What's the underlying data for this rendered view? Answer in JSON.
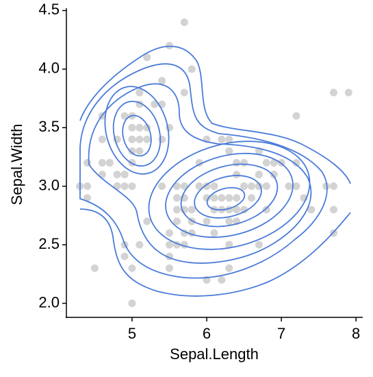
{
  "chart_data": {
    "type": "scatter",
    "color": "#d3d3d3",
    "x_label": "Sepal.Length",
    "y_label": "Sepal.Width",
    "xlim": [
      4.12,
      8.09
    ],
    "ylim": [
      1.88,
      4.52
    ],
    "xticks": [
      5,
      6,
      7,
      8
    ],
    "yticks": [
      {
        "value": 2,
        "label": "2.0"
      },
      2.5,
      {
        "value": 3,
        "label": "3.0"
      },
      3.5,
      {
        "value": 4,
        "label": "4.0"
      },
      4.5
    ],
    "x": [
      5.1,
      4.9,
      4.7,
      4.6,
      5.0,
      5.4,
      4.6,
      5.0,
      4.4,
      4.9,
      5.4,
      4.8,
      4.8,
      4.3,
      5.8,
      5.7,
      5.4,
      5.1,
      5.7,
      5.1,
      5.4,
      5.1,
      4.6,
      5.1,
      4.8,
      5.0,
      5.0,
      5.2,
      5.2,
      4.7,
      4.8,
      5.4,
      5.2,
      5.5,
      4.9,
      5.0,
      5.5,
      4.9,
      4.4,
      5.1,
      5.0,
      4.5,
      4.4,
      5.0,
      5.1,
      4.8,
      5.1,
      4.6,
      5.3,
      5.0,
      7.0,
      6.4,
      6.9,
      5.5,
      6.5,
      5.7,
      6.3,
      4.9,
      6.6,
      5.2,
      5.0,
      5.9,
      6.0,
      6.1,
      5.6,
      6.7,
      5.6,
      5.8,
      6.2,
      5.6,
      5.9,
      6.1,
      6.3,
      6.1,
      6.4,
      6.6,
      6.8,
      6.7,
      6.0,
      5.7,
      5.5,
      5.5,
      5.8,
      6.0,
      5.4,
      6.0,
      6.7,
      6.3,
      5.6,
      5.5,
      5.5,
      6.1,
      5.8,
      5.0,
      5.6,
      5.7,
      5.7,
      6.2,
      5.1,
      5.7,
      6.3,
      5.8,
      7.1,
      6.3,
      6.5,
      7.6,
      4.9,
      7.3,
      6.7,
      7.2,
      6.5,
      6.4,
      6.8,
      5.7,
      5.8,
      6.4,
      6.5,
      7.7,
      7.7,
      6.0,
      6.9,
      5.6,
      7.7,
      6.3,
      6.7,
      7.2,
      6.2,
      6.1,
      6.4,
      7.2,
      7.4,
      7.9,
      6.4,
      6.3,
      6.1,
      7.7,
      6.3,
      6.4,
      6.0,
      6.9,
      6.7,
      6.9,
      5.8,
      6.8,
      6.7,
      6.7,
      6.3,
      6.5,
      6.2,
      5.9
    ],
    "values": [
      3.5,
      3.0,
      3.2,
      3.1,
      3.6,
      3.9,
      3.4,
      3.4,
      2.9,
      3.1,
      3.7,
      3.4,
      3.0,
      3.0,
      4.0,
      4.4,
      3.9,
      3.5,
      3.8,
      3.8,
      3.4,
      3.7,
      3.6,
      3.3,
      3.4,
      3.0,
      3.4,
      3.5,
      3.4,
      3.2,
      3.1,
      3.4,
      4.1,
      4.2,
      3.1,
      3.2,
      3.5,
      3.6,
      3.0,
      3.4,
      3.5,
      2.3,
      3.2,
      3.5,
      3.8,
      3.0,
      3.8,
      3.2,
      3.7,
      3.3,
      3.2,
      3.2,
      3.1,
      2.3,
      2.8,
      2.8,
      3.3,
      2.4,
      2.9,
      2.7,
      2.0,
      3.0,
      2.2,
      2.9,
      2.9,
      3.1,
      3.0,
      2.7,
      2.2,
      2.5,
      3.2,
      2.8,
      2.5,
      2.8,
      2.9,
      3.0,
      2.8,
      3.0,
      2.9,
      2.6,
      2.4,
      2.4,
      2.7,
      2.7,
      3.0,
      3.4,
      3.1,
      2.3,
      3.0,
      2.5,
      2.6,
      3.0,
      2.6,
      2.3,
      2.7,
      3.0,
      2.9,
      2.9,
      2.5,
      2.8,
      3.3,
      2.7,
      3.0,
      2.9,
      3.0,
      3.0,
      2.5,
      2.9,
      2.5,
      3.6,
      3.2,
      2.7,
      3.0,
      2.5,
      2.8,
      3.2,
      3.0,
      3.8,
      2.6,
      2.2,
      3.2,
      2.8,
      2.8,
      2.7,
      3.3,
      3.2,
      2.8,
      3.0,
      2.8,
      3.0,
      2.8,
      3.8,
      2.8,
      2.8,
      2.6,
      3.0,
      3.4,
      3.1,
      3.0,
      3.1,
      3.1,
      3.1,
      2.7,
      3.2,
      3.3,
      3.0,
      2.5,
      3.0,
      3.4,
      3.0
    ]
  }
}
